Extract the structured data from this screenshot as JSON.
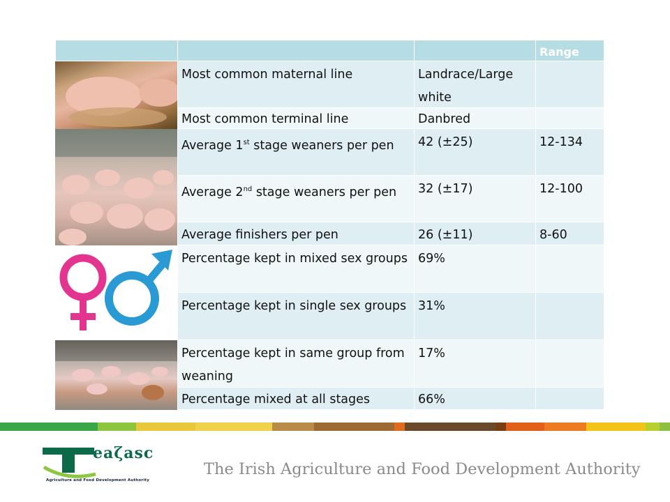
{
  "table": {
    "header": {
      "col1": "",
      "col2": "",
      "col3": "Range"
    },
    "rows": [
      {
        "label": "Most common maternal line",
        "value": "Landrace/Large white",
        "range": ""
      },
      {
        "label": "Most common terminal line",
        "value": "Danbred",
        "range": ""
      },
      {
        "label_pre": "Average 1",
        "label_sup": "st",
        "label_post": " stage weaners per pen",
        "value": "42 (±25)",
        "range": "12-134"
      },
      {
        "label_pre": "Average 2",
        "label_sup": "nd",
        "label_post": " stage weaners per pen",
        "value": "32 (±17)",
        "range": "12-100"
      },
      {
        "label": "Average finishers per pen",
        "value": "26 (±11)",
        "range": "8-60"
      },
      {
        "label": "Percentage kept in mixed sex groups",
        "value": "69%",
        "range": ""
      },
      {
        "label": "Percentage kept in single sex groups",
        "value": "31%",
        "range": ""
      },
      {
        "label": "Percentage kept in same group from weaning",
        "value": "17%",
        "range": ""
      },
      {
        "label": "Percentage mixed at all stages",
        "value": "66%",
        "range": ""
      }
    ]
  },
  "footer": {
    "logo_word": "eaζasc",
    "logo_subtitle": "Agriculture and Food Development Authority",
    "tagline": "The Irish Agriculture and Food Development Authority",
    "stripe_colors": [
      "#3aa64a",
      "#8cc63e",
      "#e8c83a",
      "#f0d24a",
      "#b98a48",
      "#9c6a32",
      "#e06a1e",
      "#6b4a2a",
      "#7a3e14",
      "#e2601a",
      "#ee7a22",
      "#f2c418",
      "#b8cf30",
      "#8dc040"
    ]
  },
  "colors": {
    "header_bg": "#b7dde4",
    "row_odd": "#dfeef3",
    "row_even": "#eff7f9",
    "female_symbol": "#e3358f",
    "male_symbol": "#2a9ad4"
  }
}
